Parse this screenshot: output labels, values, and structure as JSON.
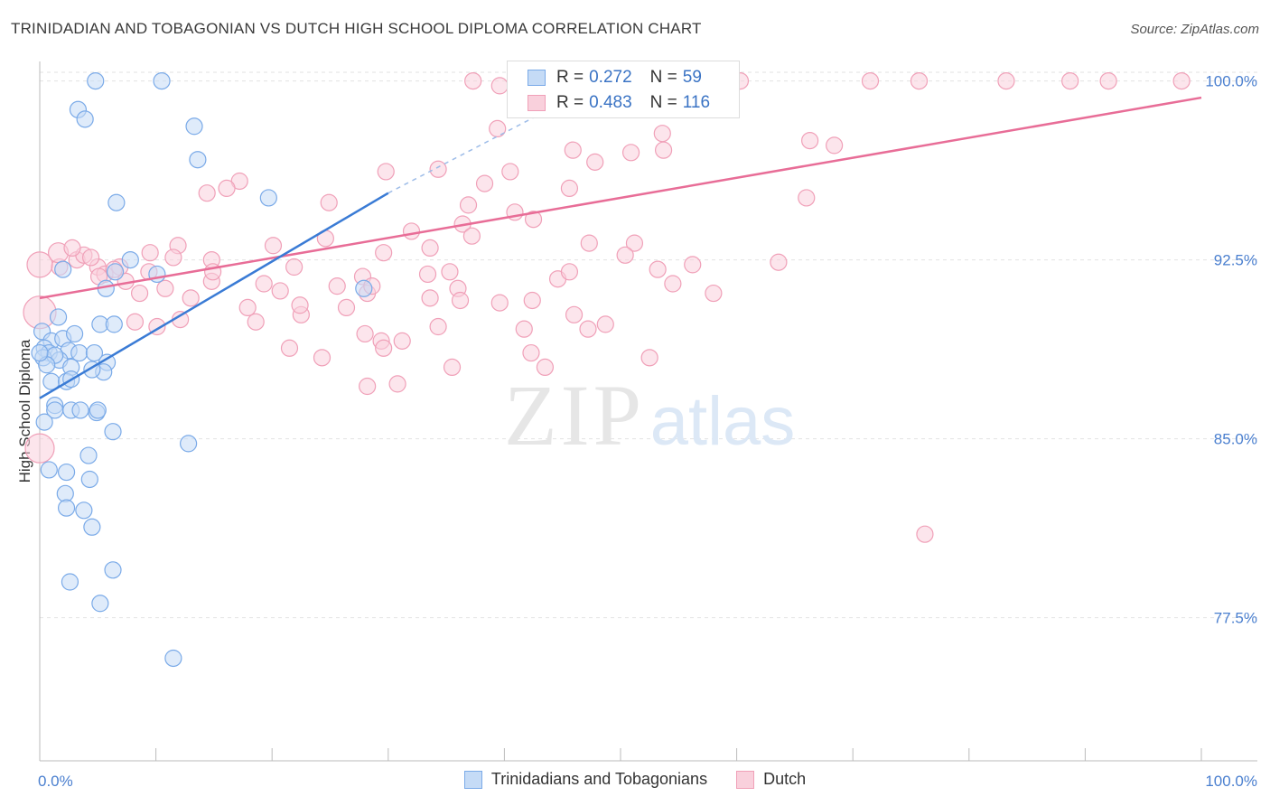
{
  "title": "TRINIDADIAN AND TOBAGONIAN VS DUTCH HIGH SCHOOL DIPLOMA CORRELATION CHART",
  "source": "Source: ZipAtlas.com",
  "watermark": {
    "zip": "ZIP",
    "atlas": "atlas"
  },
  "legend": {
    "rows": [
      {
        "r_label": "R =",
        "r_value": "0.272",
        "n_label": "N =",
        "n_value": "59"
      },
      {
        "r_label": "R =",
        "r_value": "0.483",
        "n_label": "N =",
        "n_value": "116"
      }
    ],
    "bottom": [
      "Trinidadians and Tobagonians",
      "Dutch"
    ]
  },
  "colors": {
    "blue": "#7aaae8",
    "blue_fill": "#c5dbf6",
    "blue_line": "#3a7bd5",
    "pink": "#f0a0b8",
    "pink_fill": "#f9d0dc",
    "pink_line": "#e86d97",
    "axis_text": "#4a7fcf"
  },
  "chart_data": {
    "type": "scatter",
    "title": "TRINIDADIAN AND TOBAGONIAN VS DUTCH HIGH SCHOOL DIPLOMA CORRELATION CHART",
    "xlabel": "",
    "ylabel": "High School Diploma",
    "xlim": [
      0,
      100
    ],
    "ylim": [
      71.5,
      101.5
    ],
    "x_tick_labels": [
      "0.0%",
      "100.0%"
    ],
    "y_ticks": [
      77.5,
      85.0,
      92.5,
      100.0
    ],
    "y_tick_labels": [
      "77.5%",
      "85.0%",
      "92.5%",
      "100.0%"
    ],
    "series": [
      {
        "name": "Trinidadians and Tobagonians",
        "r": 0.272,
        "n": 59,
        "trend": {
          "x": [
            0,
            30
          ],
          "y": [
            86.7,
            95.3
          ]
        },
        "trend_dashed": {
          "x": [
            30,
            47
          ],
          "y": [
            95.3,
            99.6
          ]
        },
        "points": [
          [
            4.8,
            100
          ],
          [
            10.5,
            100
          ],
          [
            3.3,
            98.8
          ],
          [
            3.9,
            98.4
          ],
          [
            13.3,
            98.1
          ],
          [
            13.6,
            96.7
          ],
          [
            6.6,
            94.9
          ],
          [
            19.7,
            95.1
          ],
          [
            10.1,
            91.9
          ],
          [
            6.5,
            92.0
          ],
          [
            5.7,
            91.3
          ],
          [
            27.9,
            91.3
          ],
          [
            0.2,
            89.5
          ],
          [
            1.0,
            89.1
          ],
          [
            0.4,
            88.8
          ],
          [
            2.0,
            89.2
          ],
          [
            2.5,
            88.7
          ],
          [
            5.2,
            89.8
          ],
          [
            6.4,
            89.8
          ],
          [
            0.8,
            88.6
          ],
          [
            1.7,
            88.3
          ],
          [
            3.4,
            88.6
          ],
          [
            4.7,
            88.6
          ],
          [
            0.3,
            88.4
          ],
          [
            1.3,
            88.5
          ],
          [
            5.8,
            88.2
          ],
          [
            2.7,
            88.0
          ],
          [
            5.5,
            87.8
          ],
          [
            1.0,
            87.4
          ],
          [
            2.3,
            87.4
          ],
          [
            4.5,
            87.9
          ],
          [
            1.3,
            86.4
          ],
          [
            1.3,
            86.2
          ],
          [
            2.7,
            86.2
          ],
          [
            3.5,
            86.2
          ],
          [
            4.9,
            86.1
          ],
          [
            0.4,
            85.7
          ],
          [
            6.3,
            85.3
          ],
          [
            12.8,
            84.8
          ],
          [
            4.2,
            84.3
          ],
          [
            0.8,
            83.7
          ],
          [
            2.3,
            83.6
          ],
          [
            4.3,
            83.3
          ],
          [
            2.2,
            82.7
          ],
          [
            2.3,
            82.1
          ],
          [
            3.8,
            82.0
          ],
          [
            4.5,
            81.3
          ],
          [
            6.3,
            79.5
          ],
          [
            2.6,
            79.0
          ],
          [
            5.2,
            78.1
          ],
          [
            11.5,
            75.8
          ],
          [
            7.8,
            92.5
          ],
          [
            2.0,
            92.1
          ],
          [
            0.6,
            88.1
          ],
          [
            3.0,
            89.4
          ],
          [
            1.6,
            90.1
          ],
          [
            0.0,
            88.6
          ],
          [
            2.7,
            87.5
          ],
          [
            5.0,
            86.2
          ]
        ]
      },
      {
        "name": "Dutch",
        "r": 0.483,
        "n": 116,
        "trend": {
          "x": [
            0,
            100
          ],
          "y": [
            90.9,
            99.3
          ]
        },
        "points": [
          [
            37.3,
            100
          ],
          [
            53.3,
            100
          ],
          [
            60.3,
            100
          ],
          [
            71.5,
            100
          ],
          [
            75.7,
            100
          ],
          [
            83.2,
            100
          ],
          [
            88.7,
            100
          ],
          [
            92.0,
            100
          ],
          [
            98.3,
            100
          ],
          [
            41.8,
            100
          ],
          [
            39.6,
            99.8
          ],
          [
            50.7,
            99.1
          ],
          [
            55.3,
            98.8
          ],
          [
            39.4,
            98.0
          ],
          [
            53.6,
            97.8
          ],
          [
            66.3,
            97.5
          ],
          [
            68.4,
            97.3
          ],
          [
            45.9,
            97.1
          ],
          [
            50.9,
            97.0
          ],
          [
            53.7,
            97.1
          ],
          [
            47.8,
            96.6
          ],
          [
            40.5,
            96.2
          ],
          [
            34.3,
            96.3
          ],
          [
            29.8,
            96.2
          ],
          [
            17.2,
            95.8
          ],
          [
            16.1,
            95.5
          ],
          [
            14.4,
            95.3
          ],
          [
            38.3,
            95.7
          ],
          [
            45.6,
            95.5
          ],
          [
            66.0,
            95.1
          ],
          [
            24.9,
            94.9
          ],
          [
            36.9,
            94.8
          ],
          [
            40.9,
            94.5
          ],
          [
            42.5,
            94.2
          ],
          [
            36.4,
            94.0
          ],
          [
            32.0,
            93.7
          ],
          [
            24.6,
            93.4
          ],
          [
            11.9,
            93.1
          ],
          [
            9.5,
            92.8
          ],
          [
            11.5,
            92.6
          ],
          [
            14.8,
            92.5
          ],
          [
            29.6,
            92.8
          ],
          [
            33.6,
            93.0
          ],
          [
            47.3,
            93.2
          ],
          [
            51.2,
            93.2
          ],
          [
            50.4,
            92.7
          ],
          [
            53.2,
            92.1
          ],
          [
            56.2,
            92.3
          ],
          [
            63.6,
            92.4
          ],
          [
            54.5,
            91.5
          ],
          [
            58.0,
            91.1
          ],
          [
            42.4,
            90.8
          ],
          [
            33.6,
            90.9
          ],
          [
            27.8,
            91.8
          ],
          [
            25.6,
            91.4
          ],
          [
            19.3,
            91.5
          ],
          [
            13.0,
            90.9
          ],
          [
            17.9,
            90.5
          ],
          [
            22.5,
            90.2
          ],
          [
            18.6,
            89.9
          ],
          [
            10.1,
            89.7
          ],
          [
            8.2,
            89.9
          ],
          [
            12.1,
            90.0
          ],
          [
            6.9,
            92.2
          ],
          [
            3.2,
            92.5
          ],
          [
            5.0,
            92.2
          ],
          [
            7.4,
            91.6
          ],
          [
            5.6,
            91.9
          ],
          [
            14.8,
            91.6
          ],
          [
            1.7,
            92.2
          ],
          [
            3.8,
            92.7
          ],
          [
            21.9,
            92.2
          ],
          [
            20.7,
            91.2
          ],
          [
            28.2,
            91.1
          ],
          [
            28.6,
            91.4
          ],
          [
            33.4,
            91.9
          ],
          [
            35.3,
            92.0
          ],
          [
            44.6,
            91.7
          ],
          [
            45.6,
            92.0
          ],
          [
            36.0,
            91.3
          ],
          [
            36.2,
            90.8
          ],
          [
            39.6,
            90.7
          ],
          [
            46.0,
            90.2
          ],
          [
            48.7,
            89.8
          ],
          [
            47.2,
            89.6
          ],
          [
            41.7,
            89.6
          ],
          [
            29.4,
            89.1
          ],
          [
            28.0,
            89.4
          ],
          [
            31.2,
            89.1
          ],
          [
            29.6,
            88.8
          ],
          [
            34.3,
            89.7
          ],
          [
            42.3,
            88.6
          ],
          [
            43.5,
            88.0
          ],
          [
            35.5,
            88.0
          ],
          [
            52.5,
            88.4
          ],
          [
            24.3,
            88.4
          ],
          [
            21.5,
            88.8
          ],
          [
            28.2,
            87.2
          ],
          [
            30.8,
            87.3
          ],
          [
            76.2,
            81.0
          ],
          [
            8.6,
            91.1
          ],
          [
            5.1,
            91.8
          ],
          [
            4.4,
            92.6
          ],
          [
            6.4,
            92.1
          ],
          [
            14.9,
            92.0
          ],
          [
            9.4,
            92.0
          ],
          [
            20.1,
            93.1
          ],
          [
            22.4,
            90.6
          ],
          [
            26.4,
            90.5
          ],
          [
            10.8,
            91.3
          ],
          [
            0.0,
            92.3
          ],
          [
            0.0,
            90.3
          ],
          [
            0.0,
            84.6
          ],
          [
            1.6,
            92.8
          ],
          [
            2.8,
            93.0
          ],
          [
            37.2,
            93.5
          ]
        ]
      }
    ]
  }
}
